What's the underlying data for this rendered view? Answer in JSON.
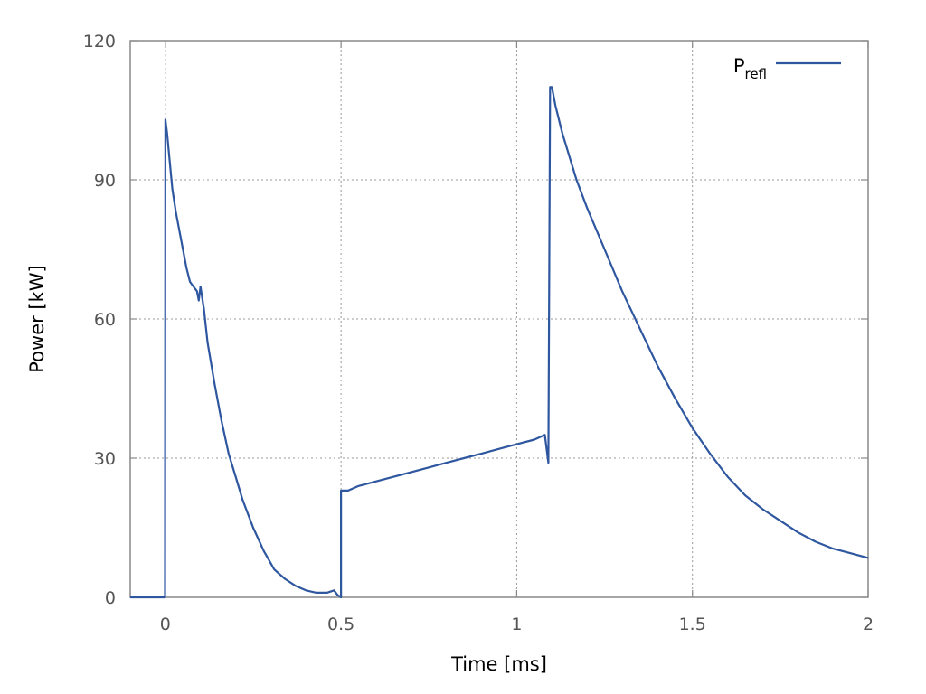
{
  "chart_data": {
    "type": "line",
    "xlabel": "Time [ms]",
    "ylabel": "Power [kW]",
    "xlim": [
      -0.1,
      2.0
    ],
    "ylim": [
      0,
      120
    ],
    "xticks": [
      {
        "value": 0,
        "label": "0"
      },
      {
        "value": 0.5,
        "label": "0.5"
      },
      {
        "value": 1,
        "label": "1"
      },
      {
        "value": 1.5,
        "label": "1.5"
      },
      {
        "value": 2,
        "label": "2"
      }
    ],
    "yticks": [
      {
        "value": 0,
        "label": "0"
      },
      {
        "value": 30,
        "label": "30"
      },
      {
        "value": 60,
        "label": "60"
      },
      {
        "value": 90,
        "label": "90"
      },
      {
        "value": 120,
        "label": "120"
      }
    ],
    "grid": true,
    "legend": {
      "placement": "top-right",
      "main": "P",
      "sub": "refl"
    },
    "series": [
      {
        "color": "#2f57a0",
        "points": [
          [
            -0.1,
            0
          ],
          [
            -0.001,
            0
          ],
          [
            0.0,
            103
          ],
          [
            0.005,
            100
          ],
          [
            0.01,
            96
          ],
          [
            0.02,
            88
          ],
          [
            0.03,
            83
          ],
          [
            0.04,
            79
          ],
          [
            0.05,
            75
          ],
          [
            0.06,
            71
          ],
          [
            0.07,
            68
          ],
          [
            0.08,
            67
          ],
          [
            0.09,
            66
          ],
          [
            0.095,
            64
          ],
          [
            0.1,
            67
          ],
          [
            0.11,
            62
          ],
          [
            0.12,
            55
          ],
          [
            0.14,
            46
          ],
          [
            0.16,
            38
          ],
          [
            0.18,
            31
          ],
          [
            0.2,
            26
          ],
          [
            0.22,
            21
          ],
          [
            0.25,
            15
          ],
          [
            0.28,
            10
          ],
          [
            0.31,
            6
          ],
          [
            0.34,
            4
          ],
          [
            0.37,
            2.5
          ],
          [
            0.4,
            1.5
          ],
          [
            0.43,
            1
          ],
          [
            0.46,
            1
          ],
          [
            0.48,
            1.5
          ],
          [
            0.49,
            0.5
          ],
          [
            0.5,
            0
          ],
          [
            0.5,
            23
          ],
          [
            0.52,
            23
          ],
          [
            0.55,
            24
          ],
          [
            0.6,
            25
          ],
          [
            0.65,
            26
          ],
          [
            0.7,
            27
          ],
          [
            0.75,
            28
          ],
          [
            0.8,
            29
          ],
          [
            0.85,
            30
          ],
          [
            0.9,
            31
          ],
          [
            0.95,
            32
          ],
          [
            1.0,
            33
          ],
          [
            1.05,
            34
          ],
          [
            1.08,
            35
          ],
          [
            1.09,
            29
          ],
          [
            1.095,
            110
          ],
          [
            1.1,
            110
          ],
          [
            1.11,
            106
          ],
          [
            1.13,
            100
          ],
          [
            1.15,
            95
          ],
          [
            1.17,
            90
          ],
          [
            1.2,
            84
          ],
          [
            1.25,
            75
          ],
          [
            1.3,
            66
          ],
          [
            1.35,
            58
          ],
          [
            1.4,
            50
          ],
          [
            1.45,
            43
          ],
          [
            1.5,
            36.5
          ],
          [
            1.55,
            31
          ],
          [
            1.6,
            26
          ],
          [
            1.65,
            22
          ],
          [
            1.7,
            19
          ],
          [
            1.75,
            16.5
          ],
          [
            1.8,
            14
          ],
          [
            1.85,
            12
          ],
          [
            1.9,
            10.5
          ],
          [
            1.95,
            9.5
          ],
          [
            2.0,
            8.5
          ]
        ]
      }
    ]
  }
}
